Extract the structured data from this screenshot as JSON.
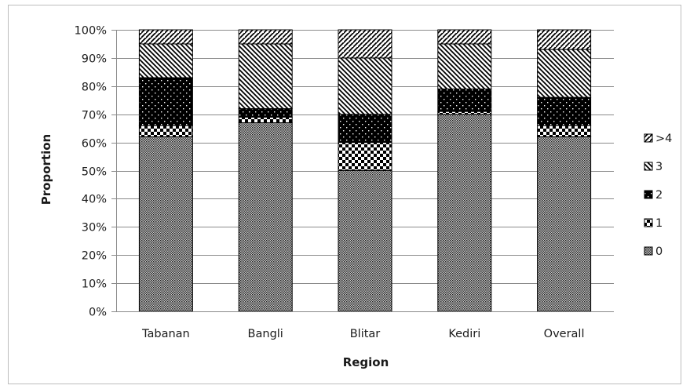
{
  "chart_data": {
    "type": "bar",
    "stacked": true,
    "percent_axis": true,
    "title": "",
    "xlabel": "Region",
    "ylabel": "Proportion",
    "ylim": [
      0,
      100
    ],
    "yticks": [
      "0%",
      "10%",
      "20%",
      "30%",
      "40%",
      "50%",
      "60%",
      "70%",
      "80%",
      "90%",
      "100%"
    ],
    "categories": [
      "Tabanan",
      "Bangli",
      "Blitar",
      "Kediri",
      "Overall"
    ],
    "series": [
      {
        "name": "0",
        "pattern": "dense-dots",
        "values": [
          62,
          67,
          50,
          70,
          62
        ]
      },
      {
        "name": "1",
        "pattern": "checker",
        "values": [
          4,
          2,
          10,
          1,
          4
        ]
      },
      {
        "name": "2",
        "pattern": "black-dots",
        "values": [
          17,
          3,
          10,
          8,
          10
        ]
      },
      {
        "name": "3",
        "pattern": "back-diagonal",
        "values": [
          12,
          23,
          20,
          16,
          17
        ]
      },
      {
        "name": ">4",
        "pattern": "forward-diagonal",
        "values": [
          5,
          5,
          10,
          5,
          7
        ]
      }
    ],
    "grid": true,
    "legend_position": "right",
    "legend_order": [
      ">4",
      "3",
      "2",
      "1",
      "0"
    ]
  }
}
